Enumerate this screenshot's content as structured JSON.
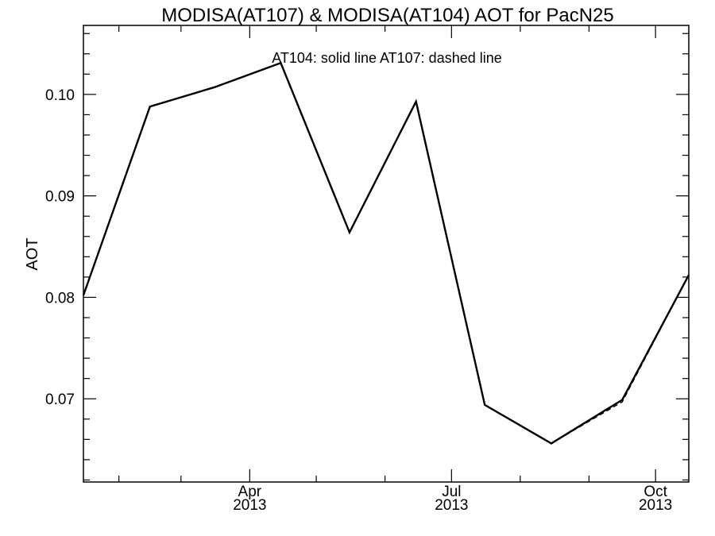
{
  "chart_data": {
    "type": "line",
    "title": "MODISA(AT107) & MODISA(AT104)  AOT for PacN25",
    "xlabel": "",
    "ylabel": "AOT",
    "annotation": "AT104: solid line   AT107: dashed line",
    "xlim": [
      "2013-01-16",
      "2013-10-16"
    ],
    "ylim": [
      0.0618,
      0.1068
    ],
    "yticks": [
      0.07,
      0.08,
      0.09,
      0.1
    ],
    "ytick_labels": [
      "0.07",
      "0.08",
      "0.09",
      "0.10"
    ],
    "xticks": [
      {
        "date": "2013-04-01",
        "label": "Apr",
        "year": "2013"
      },
      {
        "date": "2013-07-01",
        "label": "Jul",
        "year": "2013"
      },
      {
        "date": "2013-10-01",
        "label": "Oct",
        "year": "2013"
      }
    ],
    "x": [
      "2013-01-16",
      "2013-02-15",
      "2013-03-16",
      "2013-04-15",
      "2013-05-16",
      "2013-06-15",
      "2013-07-16",
      "2013-08-15",
      "2013-09-16",
      "2013-10-16"
    ],
    "series": [
      {
        "name": "AT104",
        "style": "solid",
        "values": [
          0.0802,
          0.0988,
          0.1007,
          0.1031,
          0.0864,
          0.0993,
          0.0694,
          0.0656,
          0.0699,
          0.0822
        ]
      },
      {
        "name": "AT107",
        "style": "dashed",
        "values": [
          0.0802,
          0.0988,
          0.1007,
          0.1031,
          0.0864,
          0.0993,
          0.0694,
          0.0656,
          0.0697,
          0.0822
        ]
      }
    ],
    "grid": false,
    "colors": {
      "line": "#000000",
      "background": "#ffffff"
    }
  }
}
